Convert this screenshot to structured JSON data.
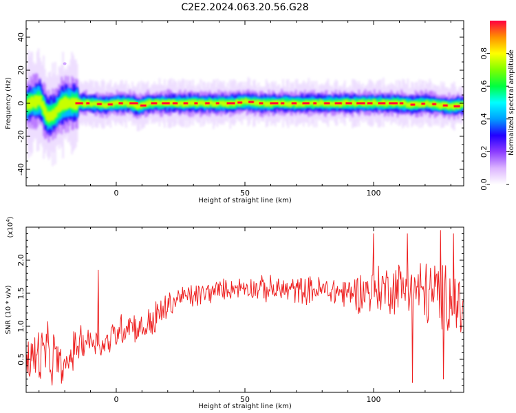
{
  "figure": {
    "title": "C2E2.2024.063.20.56.G28"
  },
  "chart_data": [
    {
      "type": "heatmap",
      "title": "",
      "xlabel": "Height of straight line (km)",
      "ylabel": "Frequency (Hz)",
      "xlim": [
        -35,
        135
      ],
      "ylim": [
        -50,
        50
      ],
      "xticks": [
        0,
        50,
        100
      ],
      "yticks": [
        40,
        20,
        0,
        -20,
        -40
      ],
      "ridge": {
        "description_values": "frequency of peak power vs height",
        "x": [
          -35,
          -30,
          -27,
          -24,
          -22,
          -20,
          -18,
          -15,
          -10,
          -5,
          0,
          5,
          8,
          12,
          20,
          30,
          40,
          45,
          50,
          55,
          60,
          70,
          80,
          90,
          100,
          110,
          115,
          120,
          125,
          130,
          135
        ],
        "y": [
          -1,
          2,
          -8,
          -6,
          -2,
          0,
          0,
          0,
          0,
          -1,
          0,
          0,
          -2,
          0,
          0,
          0,
          0,
          0,
          1,
          0,
          0,
          0,
          0,
          0,
          0,
          0,
          -1,
          0,
          -1,
          -2,
          -1
        ]
      },
      "isolated_point": {
        "x": -20,
        "y": 24
      },
      "colorbar": {
        "label": "Normalized spectral amplitude",
        "range": [
          0.0,
          1.0
        ],
        "ticks": [
          "0.0",
          "0.2",
          "0.4",
          "0.6",
          "0.8"
        ],
        "colors": [
          "#ffffff",
          "#dcb4ff",
          "#8c3cff",
          "#2200ff",
          "#00a0ff",
          "#00ffff",
          "#00ff40",
          "#80ff00",
          "#ffff00",
          "#ff9000",
          "#ff0040"
        ]
      }
    },
    {
      "type": "line",
      "title": "",
      "xlabel": "Height of straight line (km)",
      "ylabel": "SNR (10 * v/v)",
      "exponent_label": "(x10",
      "exponent_power": "4",
      "exponent_close": ")",
      "xlim": [
        -35,
        135
      ],
      "ylim": [
        0,
        2.5
      ],
      "xticks": [
        0,
        50,
        100
      ],
      "yticks": [
        "0.5",
        "1.0",
        "1.5",
        "2.0"
      ],
      "series": [
        {
          "color": "#ee2222",
          "envelope_x": [
            -35,
            -30,
            -25,
            -20,
            -15,
            -10,
            -5,
            0,
            5,
            10,
            15,
            20,
            25,
            30,
            40,
            50,
            60,
            70,
            80,
            90,
            100,
            110,
            120,
            130,
            135
          ],
          "envelope_mean": [
            0.45,
            0.55,
            0.55,
            0.35,
            0.75,
            0.8,
            0.7,
            0.9,
            1.05,
            0.95,
            1.1,
            1.3,
            1.45,
            1.45,
            1.55,
            1.6,
            1.55,
            1.55,
            1.55,
            1.5,
            1.55,
            1.6,
            1.5,
            1.45,
            1.2
          ],
          "envelope_spread": [
            0.4,
            0.45,
            0.45,
            0.2,
            0.3,
            0.2,
            0.2,
            0.25,
            0.25,
            0.2,
            0.3,
            0.2,
            0.15,
            0.2,
            0.15,
            0.15,
            0.2,
            0.2,
            0.2,
            0.25,
            0.35,
            0.4,
            0.5,
            0.55,
            0.5
          ]
        }
      ],
      "peaks": [
        {
          "x": -7,
          "y": 1.85
        },
        {
          "x": 100,
          "y": 2.4
        },
        {
          "x": 113,
          "y": 2.4
        },
        {
          "x": 126,
          "y": 2.45
        },
        {
          "x": 131,
          "y": 2.4
        },
        {
          "x": 115,
          "y": 0.15
        },
        {
          "x": 127,
          "y": 0.2
        }
      ]
    }
  ]
}
